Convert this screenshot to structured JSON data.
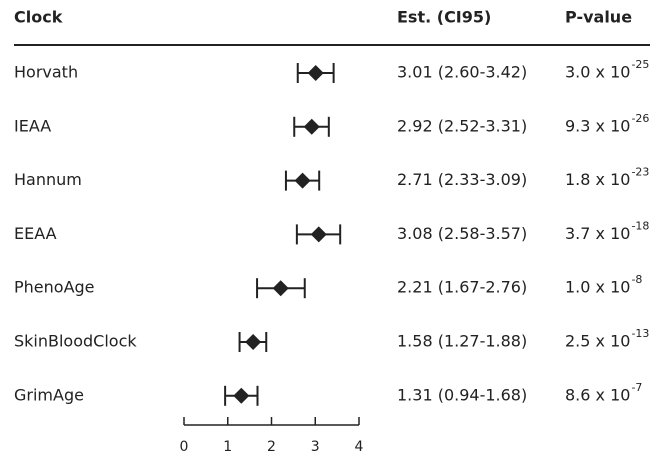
{
  "chart_data": {
    "type": "forest",
    "columns": {
      "label": "Clock",
      "estimate": "Est. (CI95)",
      "p": "P-value"
    },
    "categories": [
      "Horvath",
      "IEAA",
      "Hannum",
      "EEAA",
      "PhenoAge",
      "SkinBloodClock",
      "GrimAge"
    ],
    "values": [
      3.01,
      2.92,
      2.71,
      3.08,
      2.21,
      1.58,
      1.31
    ],
    "lower": [
      2.6,
      2.52,
      2.33,
      2.58,
      1.67,
      1.27,
      0.94
    ],
    "upper": [
      3.42,
      3.31,
      3.09,
      3.57,
      2.76,
      1.88,
      1.68
    ],
    "value_labels": [
      "3.01 (2.60-3.42)",
      "2.92 (2.52-3.31)",
      "2.71 (2.33-3.09)",
      "3.08 (2.58-3.57)",
      "2.21 (1.67-2.76)",
      "1.58 (1.27-1.88)",
      "1.31 (0.94-1.68)"
    ],
    "p_values": [
      {
        "mantissa": "3.0 x 10",
        "exponent": "-25"
      },
      {
        "mantissa": "9.3 x 10",
        "exponent": "-26"
      },
      {
        "mantissa": "1.8 x 10",
        "exponent": "-23"
      },
      {
        "mantissa": "3.7 x 10",
        "exponent": "-18"
      },
      {
        "mantissa": "1.0 x 10",
        "exponent": "-8"
      },
      {
        "mantissa": "2.5 x 10",
        "exponent": "-13"
      },
      {
        "mantissa": "8.6 x 10",
        "exponent": "-7"
      }
    ],
    "color": "#222222",
    "xlim": [
      0,
      4
    ],
    "xticks": [
      0,
      1,
      2,
      3,
      4
    ]
  }
}
